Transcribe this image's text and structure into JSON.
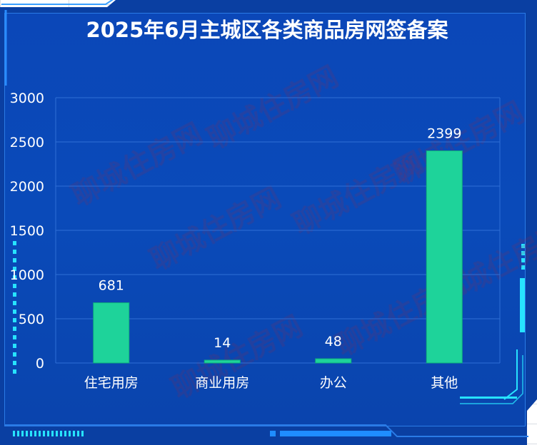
{
  "chart_data": {
    "type": "bar",
    "title": "2025年6月主城区各类商品房网签备案",
    "categories": [
      "住宅用房",
      "商业用房",
      "办公",
      "其他"
    ],
    "values": [
      681,
      14,
      48,
      2399
    ],
    "data_labels": [
      "681",
      "14",
      "48",
      "2399"
    ],
    "yticks": [
      "0",
      "500",
      "1000",
      "1500",
      "2000",
      "2500",
      "3000"
    ],
    "ylim": [
      0,
      3000
    ],
    "xlabel": "",
    "ylabel": "",
    "grid": true,
    "legend": "none",
    "colors": {
      "bar": "#1ed39a",
      "bar_edge": "#0fae7c",
      "background": "#0a47b5",
      "gridline": "#2f6fd6",
      "text": "#ffffff",
      "accent": "#27e3ff"
    }
  },
  "watermark": {
    "text": "聊城住房网"
  }
}
